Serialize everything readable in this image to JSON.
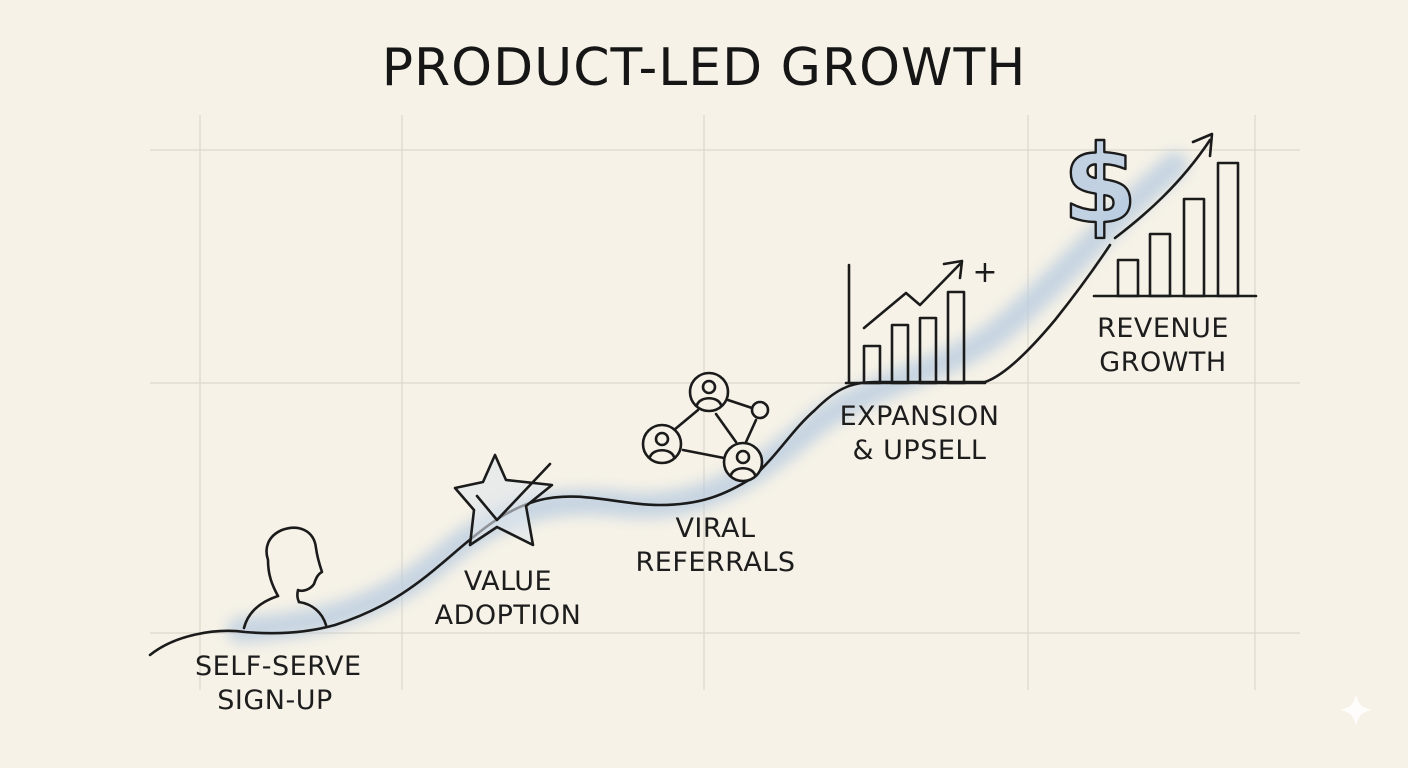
{
  "title": "PRODUCT-LED GROWTH",
  "colors": {
    "background": "#f6f2e7",
    "ink": "#1b1b1b",
    "accent_wash": "#b7cbe0",
    "grid": "#ddd8cc"
  },
  "stages": [
    {
      "icon": "person-icon",
      "lines": [
        "SELF-SERVE",
        "SIGN-UP"
      ]
    },
    {
      "icon": "star-check-icon",
      "lines": [
        "VALUE",
        "ADOPTION"
      ]
    },
    {
      "icon": "network-people-icon",
      "lines": [
        "VIRAL",
        "REFERRALS"
      ]
    },
    {
      "icon": "bar-chart-up-icon",
      "lines": [
        "EXPANSION",
        "& UPSELL"
      ],
      "icon_symbol": "+"
    },
    {
      "icon": "dollar-growth-icon",
      "lines": [
        "REVENUE",
        "GROWTH"
      ],
      "icon_symbol": "$"
    }
  ]
}
